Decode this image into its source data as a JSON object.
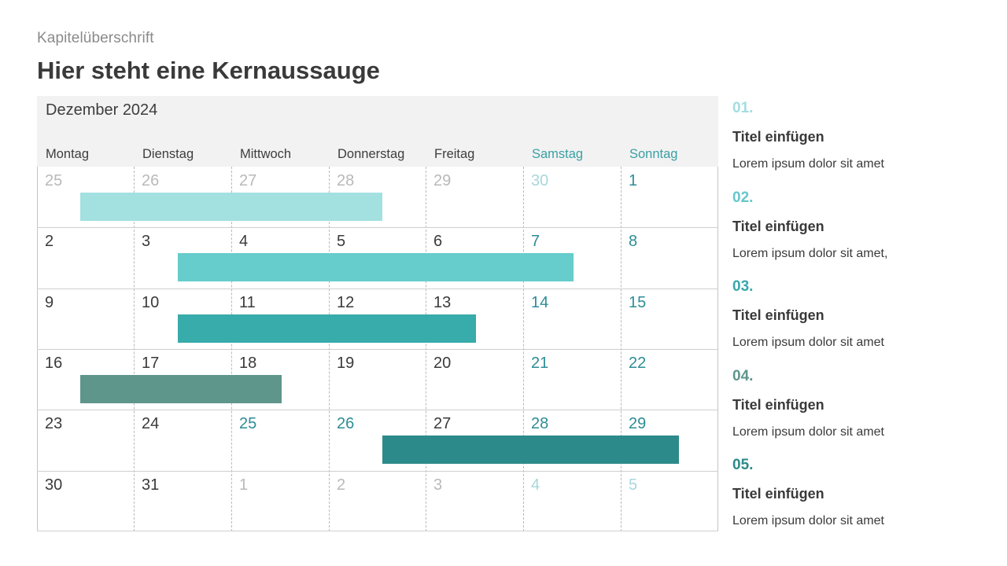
{
  "header": {
    "chapter": "Kapitelüberschrift",
    "headline": "Hier steht eine Kernaussauge"
  },
  "calendar": {
    "month": "Dezember 2024",
    "weekdays": [
      "Montag",
      "Dienstag",
      "Mittwoch",
      "Donnerstag",
      "Freitag",
      "Samstag",
      "Sonntag"
    ],
    "weeks": [
      [
        "25",
        "26",
        "27",
        "28",
        "29",
        "30",
        "1"
      ],
      [
        "2",
        "3",
        "4",
        "5",
        "6",
        "7",
        "8"
      ],
      [
        "9",
        "10",
        "11",
        "12",
        "13",
        "14",
        "15"
      ],
      [
        "16",
        "17",
        "18",
        "19",
        "20",
        "21",
        "22"
      ],
      [
        "23",
        "24",
        "25",
        "26",
        "27",
        "28",
        "29"
      ],
      [
        "30",
        "31",
        "1",
        "2",
        "3",
        "4",
        "5"
      ]
    ],
    "outside_month": [
      [
        true,
        true,
        true,
        true,
        true,
        true,
        false
      ],
      [
        false,
        false,
        false,
        false,
        false,
        false,
        false
      ],
      [
        false,
        false,
        false,
        false,
        false,
        false,
        false
      ],
      [
        false,
        false,
        false,
        false,
        false,
        false,
        false
      ],
      [
        false,
        false,
        false,
        false,
        false,
        false,
        false
      ],
      [
        false,
        false,
        true,
        true,
        true,
        true,
        true
      ]
    ],
    "events": [
      {
        "week": 0,
        "start_day": 0.45,
        "end_day": 3.55,
        "color": "#a3e0e0"
      },
      {
        "week": 1,
        "start_day": 1.45,
        "end_day": 5.52,
        "color": "#66cccc"
      },
      {
        "week": 2,
        "start_day": 1.45,
        "end_day": 4.52,
        "color": "#38abab"
      },
      {
        "week": 3,
        "start_day": 0.45,
        "end_day": 2.52,
        "color": "#5e968c"
      },
      {
        "week": 4,
        "start_day": 3.55,
        "end_day": 6.6,
        "color": "#2d8a8a"
      }
    ]
  },
  "colors": {
    "weekend_text": "#2d8d96",
    "weekday_header_weekend": "#3aa0a5"
  },
  "sidebar": {
    "items": [
      {
        "number": "01.",
        "title": "Titel einfügen",
        "text": "Lorem ipsum dolor sit amet",
        "color": "#a3dde0"
      },
      {
        "number": "02.",
        "title": "Titel einfügen",
        "text": "Lorem ipsum dolor sit amet,",
        "color": "#66c7cb"
      },
      {
        "number": "03.",
        "title": "Titel einfügen",
        "text": "Lorem ipsum dolor sit amet",
        "color": "#3aa7aa"
      },
      {
        "number": "04.",
        "title": "Titel einfügen",
        "text": "Lorem ipsum dolor sit amet",
        "color": "#5e968c"
      },
      {
        "number": "05.",
        "title": "Titel einfügen",
        "text": "Lorem ipsum dolor sit amet",
        "color": "#2d8a8a"
      }
    ]
  }
}
